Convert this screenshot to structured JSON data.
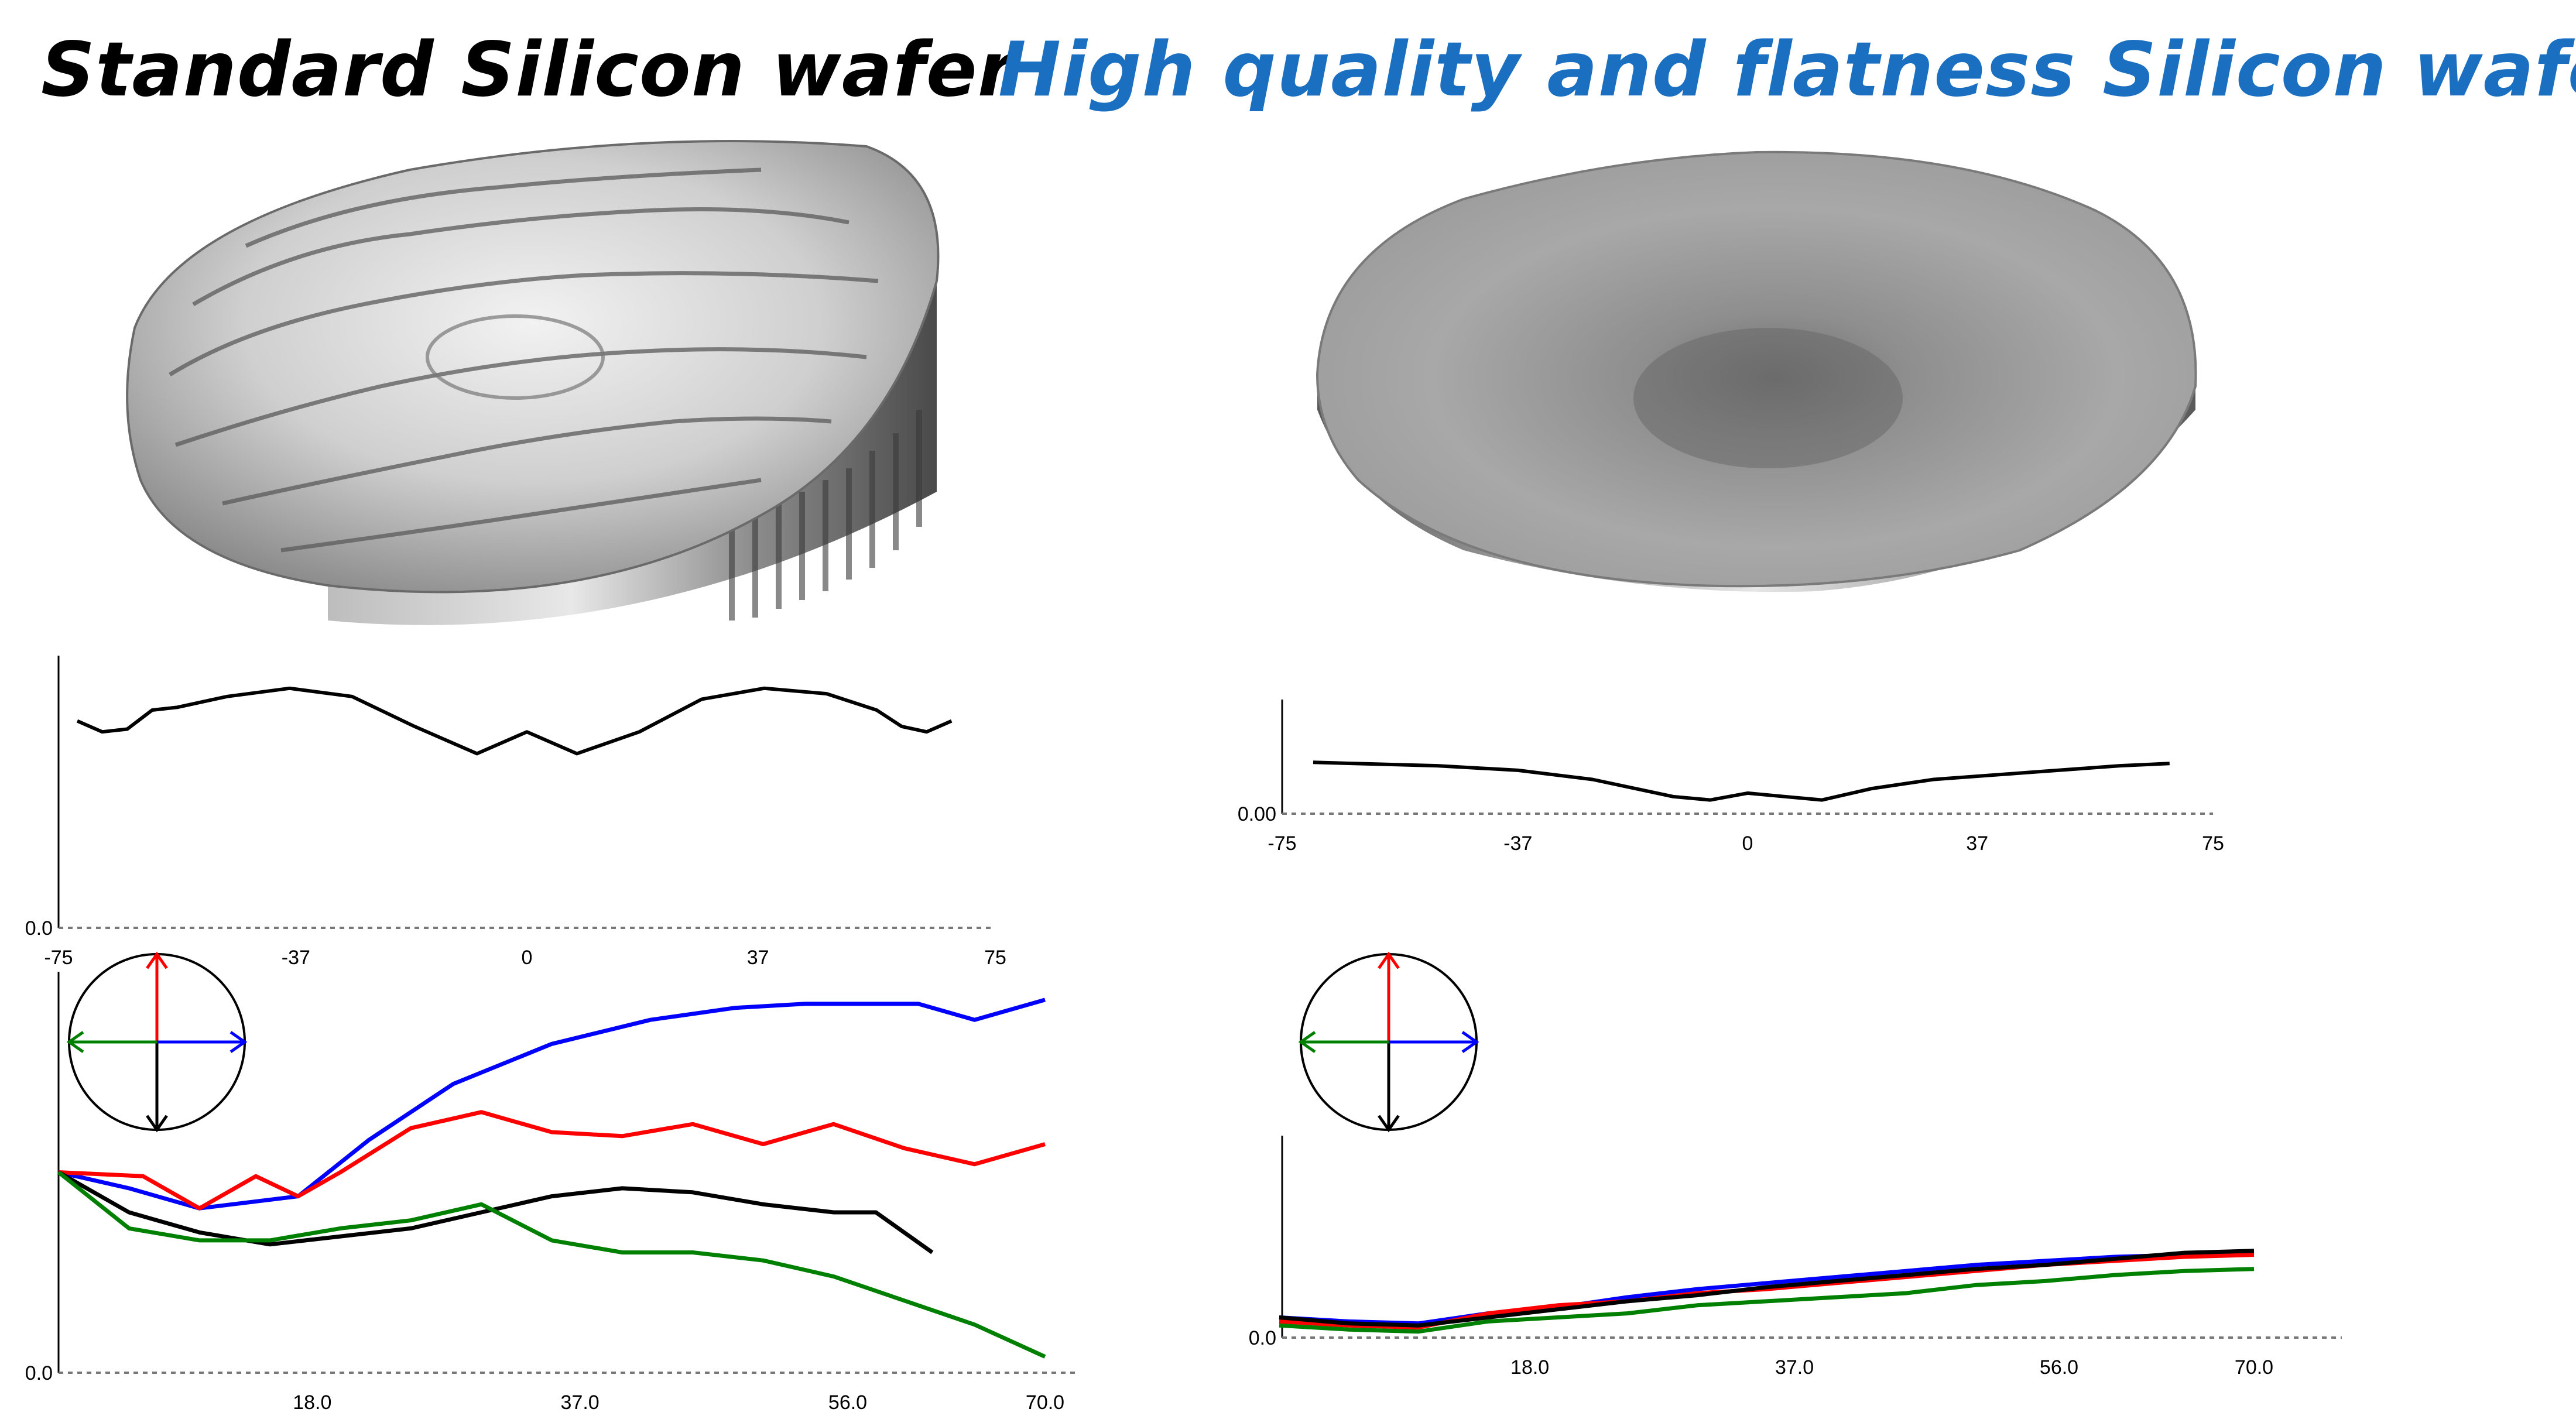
{
  "titles": {
    "left": "Standard Silicon wafer",
    "right": "High quality and flatness Silicon wafer"
  },
  "colors": {
    "left_title": "#000000",
    "right_title": "#1b6fc0",
    "red": "#ff0000",
    "blue": "#0000ff",
    "green": "#008000",
    "black": "#000000"
  },
  "profile_axis_ticks": [
    "-75",
    "-37",
    "0",
    "37",
    "75"
  ],
  "cross_section_left": {
    "y_label": "0.0",
    "x": [
      -72,
      -68,
      -64,
      -60,
      -56,
      -48,
      -38,
      -28,
      -18,
      -8,
      0,
      8,
      18,
      28,
      38,
      48,
      56,
      60,
      64,
      68
    ],
    "y": [
      0.76,
      0.72,
      0.73,
      0.8,
      0.81,
      0.85,
      0.88,
      0.85,
      0.74,
      0.64,
      0.72,
      0.64,
      0.72,
      0.84,
      0.88,
      0.86,
      0.8,
      0.74,
      0.72,
      0.76
    ]
  },
  "cross_section_right": {
    "y_label": "0.00",
    "x": [
      -70,
      -50,
      -37,
      -25,
      -12,
      -6,
      0,
      6,
      12,
      20,
      30,
      45,
      60,
      68
    ],
    "y": [
      0.45,
      0.42,
      0.38,
      0.3,
      0.15,
      0.12,
      0.18,
      0.15,
      0.12,
      0.22,
      0.3,
      0.36,
      0.42,
      0.44
    ]
  },
  "distance_axis_ticks": [
    "18.0",
    "37.0",
    "56.0",
    "70.0"
  ],
  "directional_left": {
    "y_label": "0.0",
    "series": [
      {
        "color": "blue",
        "x": [
          0,
          5,
          10,
          17,
          22,
          28,
          35,
          42,
          48,
          53,
          57,
          61,
          65,
          70
        ],
        "y": [
          0.5,
          0.46,
          0.41,
          0.44,
          0.58,
          0.72,
          0.82,
          0.88,
          0.91,
          0.92,
          0.92,
          0.92,
          0.88,
          0.93
        ]
      },
      {
        "color": "red",
        "x": [
          0,
          6,
          10,
          14,
          17,
          20,
          25,
          30,
          35,
          40,
          45,
          50,
          55,
          60,
          65,
          70
        ],
        "y": [
          0.5,
          0.49,
          0.41,
          0.49,
          0.44,
          0.5,
          0.61,
          0.65,
          0.6,
          0.59,
          0.62,
          0.57,
          0.62,
          0.56,
          0.52,
          0.57
        ]
      },
      {
        "color": "black",
        "x": [
          0,
          5,
          10,
          15,
          20,
          25,
          30,
          35,
          40,
          45,
          50,
          55,
          58,
          62
        ],
        "y": [
          0.5,
          0.4,
          0.35,
          0.32,
          0.34,
          0.36,
          0.4,
          0.44,
          0.46,
          0.45,
          0.42,
          0.4,
          0.4,
          0.3
        ]
      },
      {
        "color": "green",
        "x": [
          0,
          5,
          10,
          15,
          20,
          25,
          30,
          35,
          40,
          45,
          50,
          55,
          60,
          65,
          70
        ],
        "y": [
          0.5,
          0.36,
          0.33,
          0.33,
          0.36,
          0.38,
          0.42,
          0.33,
          0.3,
          0.3,
          0.28,
          0.24,
          0.18,
          0.12,
          0.04
        ]
      }
    ]
  },
  "directional_right": {
    "y_label": "0.0",
    "series": [
      {
        "color": "blue",
        "x": [
          0,
          5,
          10,
          15,
          20,
          25,
          30,
          35,
          40,
          45,
          50,
          55,
          60,
          65,
          70
        ],
        "y": [
          0.1,
          0.08,
          0.07,
          0.12,
          0.15,
          0.2,
          0.24,
          0.27,
          0.3,
          0.33,
          0.36,
          0.38,
          0.4,
          0.41,
          0.42
        ]
      },
      {
        "color": "red",
        "x": [
          0,
          5,
          10,
          15,
          20,
          25,
          30,
          35,
          40,
          45,
          50,
          55,
          60,
          65,
          70
        ],
        "y": [
          0.08,
          0.06,
          0.05,
          0.12,
          0.16,
          0.18,
          0.22,
          0.24,
          0.27,
          0.3,
          0.33,
          0.36,
          0.38,
          0.4,
          0.41
        ]
      },
      {
        "color": "black",
        "x": [
          0,
          5,
          10,
          15,
          20,
          25,
          30,
          35,
          40,
          45,
          50,
          55,
          60,
          65,
          70
        ],
        "y": [
          0.1,
          0.07,
          0.06,
          0.1,
          0.14,
          0.18,
          0.21,
          0.25,
          0.28,
          0.31,
          0.34,
          0.36,
          0.39,
          0.42,
          0.43
        ]
      },
      {
        "color": "green",
        "x": [
          0,
          5,
          10,
          15,
          20,
          25,
          30,
          35,
          40,
          45,
          50,
          55,
          60,
          65,
          70
        ],
        "y": [
          0.06,
          0.04,
          0.03,
          0.08,
          0.1,
          0.12,
          0.16,
          0.18,
          0.2,
          0.22,
          0.26,
          0.28,
          0.31,
          0.33,
          0.34
        ]
      }
    ]
  }
}
